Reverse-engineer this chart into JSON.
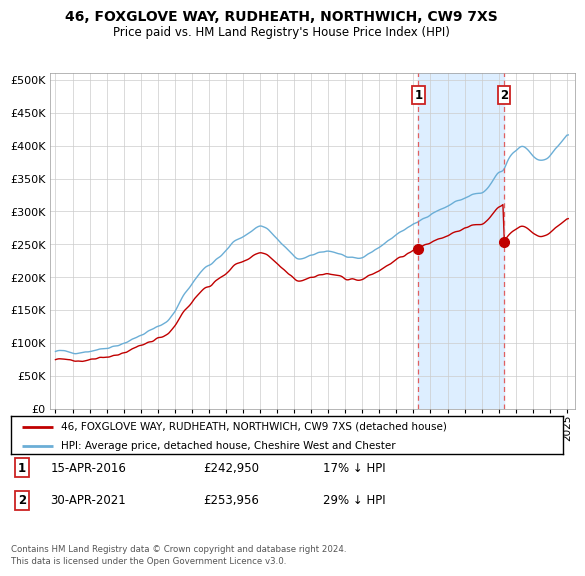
{
  "title": "46, FOXGLOVE WAY, RUDHEATH, NORTHWICH, CW9 7XS",
  "subtitle": "Price paid vs. HM Land Registry's House Price Index (HPI)",
  "legend_line1": "46, FOXGLOVE WAY, RUDHEATH, NORTHWICH, CW9 7XS (detached house)",
  "legend_line2": "HPI: Average price, detached house, Cheshire West and Chester",
  "footnote": "Contains HM Land Registry data © Crown copyright and database right 2024.\nThis data is licensed under the Open Government Licence v3.0.",
  "sale1_date": "15-APR-2016",
  "sale1_price": "£242,950",
  "sale1_hpi": "17% ↓ HPI",
  "sale2_date": "30-APR-2021",
  "sale2_price": "£253,956",
  "sale2_hpi": "29% ↓ HPI",
  "sale1_x": 2016.29,
  "sale1_y": 242950,
  "sale2_x": 2021.33,
  "sale2_y": 253956,
  "hpi_color": "#6baed6",
  "price_color": "#c00000",
  "shade_color": "#ddeeff",
  "vline_color": "#e06060",
  "grid_color": "#cccccc",
  "bg_color": "#ffffff",
  "ylim": [
    0,
    510000
  ],
  "xlim_start": 1994.7,
  "xlim_end": 2025.5,
  "yticks": [
    0,
    50000,
    100000,
    150000,
    200000,
    250000,
    300000,
    350000,
    400000,
    450000,
    500000
  ]
}
